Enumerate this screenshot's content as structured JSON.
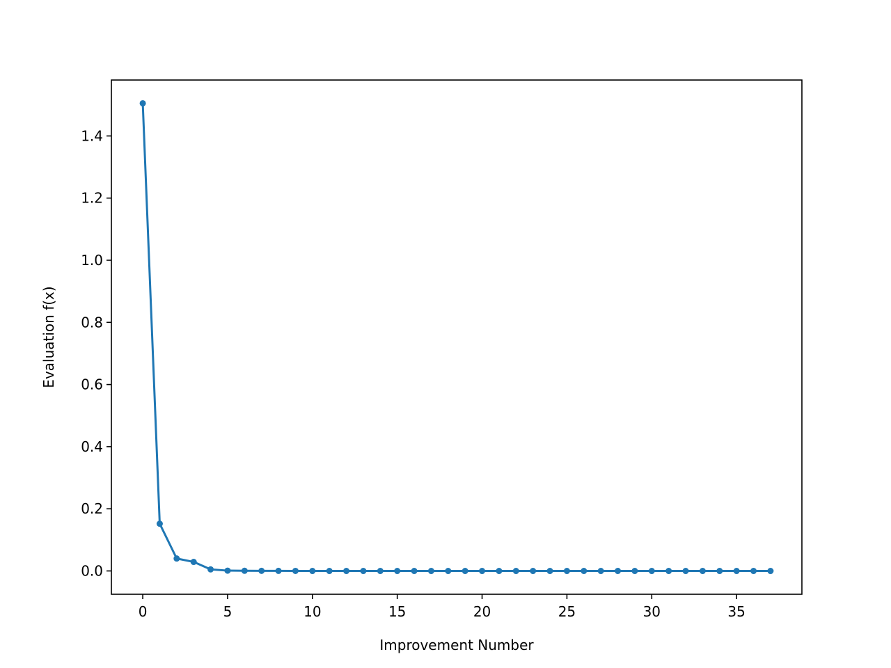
{
  "chart_data": {
    "type": "line",
    "title": "",
    "xlabel": "Improvement Number",
    "ylabel": "Evaluation f(x)",
    "xlim": [
      -1.85,
      38.85
    ],
    "ylim": [
      -0.075,
      1.58
    ],
    "xticks": [
      0,
      5,
      10,
      15,
      20,
      25,
      30,
      35
    ],
    "xtick_labels": [
      "0",
      "5",
      "10",
      "15",
      "20",
      "25",
      "30",
      "35"
    ],
    "yticks": [
      0.0,
      0.2,
      0.4,
      0.6,
      0.8,
      1.0,
      1.2,
      1.4
    ],
    "ytick_labels": [
      "0.0",
      "0.2",
      "0.4",
      "0.6",
      "0.8",
      "1.0",
      "1.2",
      "1.4"
    ],
    "grid": false,
    "series": [
      {
        "color": "#1f77b4",
        "marker": "dot",
        "x": [
          0,
          1,
          2,
          3,
          4,
          5,
          6,
          7,
          8,
          9,
          10,
          11,
          12,
          13,
          14,
          15,
          16,
          17,
          18,
          19,
          20,
          21,
          22,
          23,
          24,
          25,
          26,
          27,
          28,
          29,
          30,
          31,
          32,
          33,
          34,
          35,
          36,
          37
        ],
        "y": [
          1.505,
          0.152,
          0.04,
          0.029,
          0.005,
          0.001,
          0.0005,
          0.0003,
          0.0002,
          0.0001,
          0,
          0,
          0,
          0,
          0,
          0,
          0,
          0,
          0,
          0,
          0,
          0,
          0,
          0,
          0,
          0,
          0,
          0,
          0,
          0,
          0,
          0,
          0,
          0,
          0,
          0,
          0,
          0
        ]
      }
    ]
  }
}
